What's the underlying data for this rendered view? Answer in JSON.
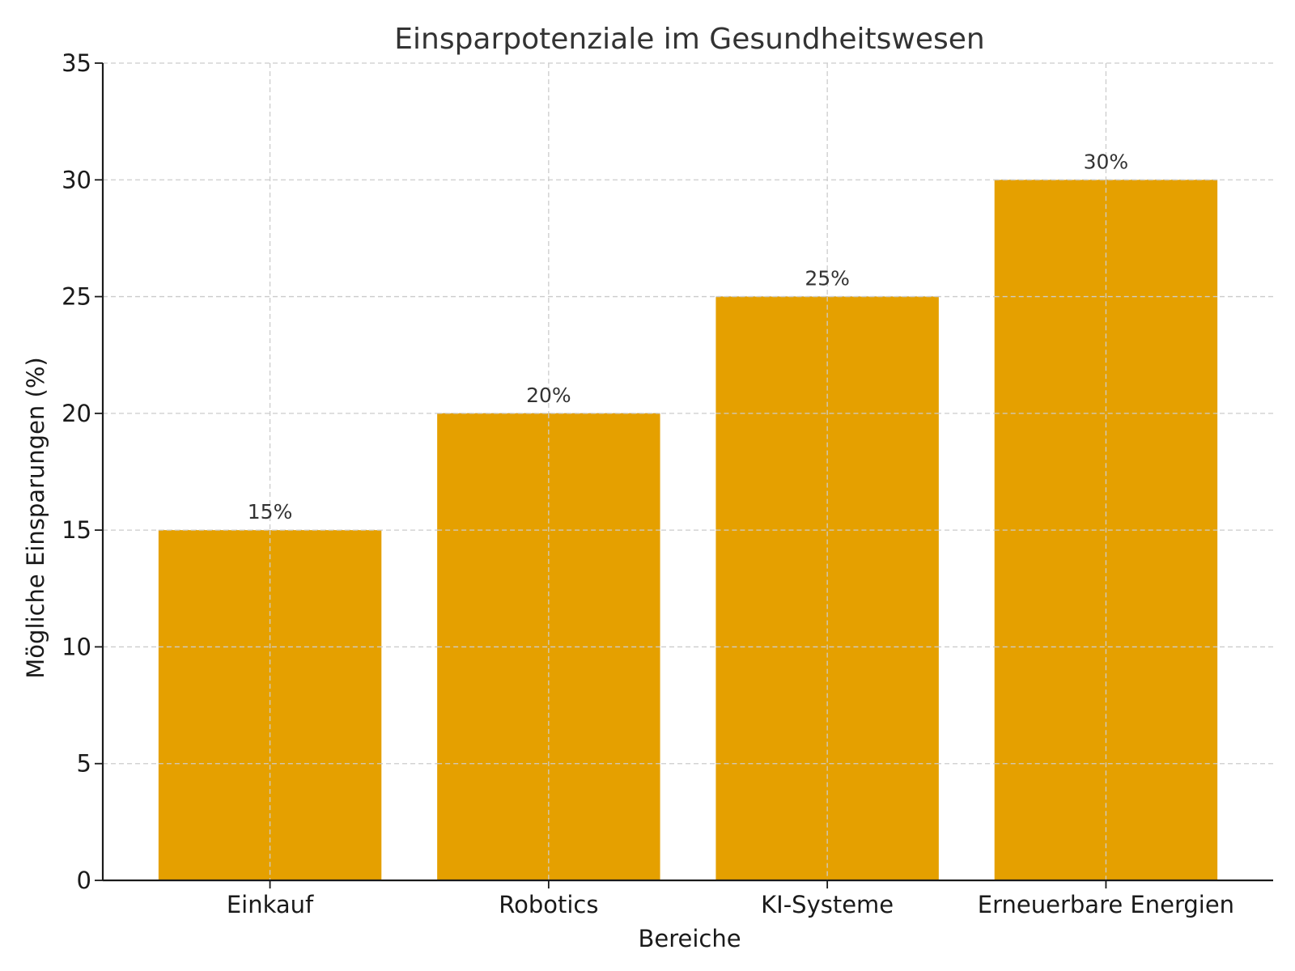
{
  "chart_data": {
    "type": "bar",
    "title": "Einsparpotenziale im Gesundheitswesen",
    "xlabel": "Bereiche",
    "ylabel": "Mögliche Einsparungen (%)",
    "categories": [
      "Einkauf",
      "Robotics",
      "KI-Systeme",
      "Erneuerbare Energien"
    ],
    "values": [
      15,
      20,
      25,
      30
    ],
    "value_labels": [
      "15%",
      "20%",
      "25%",
      "30%"
    ],
    "ylim": [
      0,
      35
    ],
    "yticks": [
      0,
      5,
      10,
      15,
      20,
      25,
      30,
      35
    ],
    "grid": true,
    "bar_color": "#E5A000"
  }
}
